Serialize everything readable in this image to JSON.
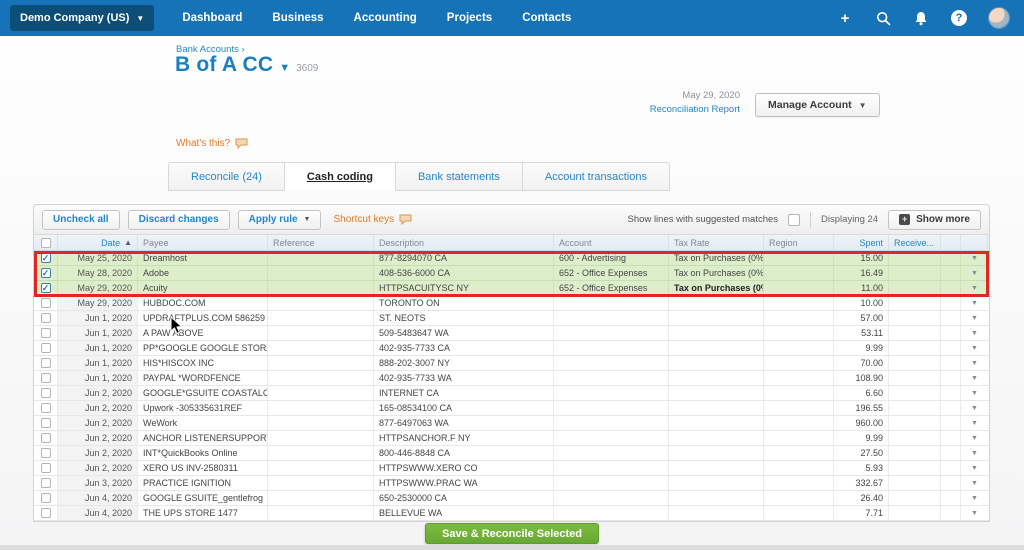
{
  "topbar": {
    "company": "Demo Company (US)",
    "nav": [
      "Dashboard",
      "Business",
      "Accounting",
      "Projects",
      "Contacts"
    ],
    "help_glyph": "?",
    "plus_glyph": "+"
  },
  "header": {
    "breadcrumb": "Bank Accounts ›",
    "title": "B of A CC",
    "account_number": "3609",
    "date": "May 29, 2020",
    "report_link": "Reconciliation Report",
    "manage_label": "Manage Account",
    "whats_this": "What's this?"
  },
  "tabs": [
    {
      "label": "Reconcile (24)",
      "active": false
    },
    {
      "label": "Cash coding",
      "active": true
    },
    {
      "label": "Bank statements",
      "active": false
    },
    {
      "label": "Account transactions",
      "active": false
    }
  ],
  "toolbar": {
    "uncheck_all": "Uncheck all",
    "discard_changes": "Discard changes",
    "apply_rule": "Apply rule",
    "shortcut_keys": "Shortcut keys",
    "suggested_matches_label": "Show lines with suggested matches",
    "displaying": "Displaying 24",
    "show_more": "Show more"
  },
  "table": {
    "columns": [
      {
        "label": "Date",
        "accent": true,
        "sorted_asc": true
      },
      {
        "label": "Payee",
        "accent": false
      },
      {
        "label": "Reference",
        "accent": false
      },
      {
        "label": "Description",
        "accent": false
      },
      {
        "label": "Account",
        "accent": false
      },
      {
        "label": "Tax Rate",
        "accent": false
      },
      {
        "label": "Region",
        "accent": false
      },
      {
        "label": "Spent",
        "accent": true
      },
      {
        "label": "Receive...",
        "accent": true
      }
    ],
    "rows": [
      {
        "checked": true,
        "highlight": true,
        "date": "May 25, 2020",
        "payee": "Dreamhost",
        "reference": "",
        "description": "877-8294070 CA",
        "account": "600 - Advertising",
        "tax_rate": "Tax on Purchases (0%)",
        "tax_bold": false,
        "region": "",
        "spent": "15.00",
        "receive": ""
      },
      {
        "checked": true,
        "highlight": true,
        "date": "May 28, 2020",
        "payee": "Adobe",
        "reference": "",
        "description": "408-536-6000 CA",
        "account": "652 - Office Expenses",
        "tax_rate": "Tax on Purchases (0%)",
        "tax_bold": false,
        "region": "",
        "spent": "16.49",
        "receive": ""
      },
      {
        "checked": true,
        "highlight": true,
        "date": "May 29, 2020",
        "payee": "Acuity",
        "reference": "",
        "description": "HTTPSACUITYSC NY",
        "account": "652 - Office Expenses",
        "tax_rate": "Tax on Purchases (0%)",
        "tax_bold": true,
        "region": "",
        "spent": "11.00",
        "receive": ""
      },
      {
        "checked": false,
        "highlight": false,
        "date": "May 29, 2020",
        "payee": "HUBDOC.COM",
        "reference": "",
        "description": "TORONTO ON",
        "account": "",
        "tax_rate": "",
        "tax_bold": false,
        "region": "",
        "spent": "10.00",
        "receive": ""
      },
      {
        "checked": false,
        "highlight": false,
        "date": "Jun 1, 2020",
        "payee": "UPDRAFTPLUS.COM 586259",
        "reference": "",
        "description": "ST. NEOTS",
        "account": "",
        "tax_rate": "",
        "tax_bold": false,
        "region": "",
        "spent": "57.00",
        "receive": ""
      },
      {
        "checked": false,
        "highlight": false,
        "date": "Jun 1, 2020",
        "payee": "A PAW ABOVE",
        "reference": "",
        "description": "509-5483647 WA",
        "account": "",
        "tax_rate": "",
        "tax_bold": false,
        "region": "",
        "spent": "53.11",
        "receive": ""
      },
      {
        "checked": false,
        "highlight": false,
        "date": "Jun 1, 2020",
        "payee": "PP*GOOGLE GOOGLE STORAGE",
        "reference": "",
        "description": "402-935-7733 CA",
        "account": "",
        "tax_rate": "",
        "tax_bold": false,
        "region": "",
        "spent": "9.99",
        "receive": ""
      },
      {
        "checked": false,
        "highlight": false,
        "date": "Jun 1, 2020",
        "payee": "HIS*HISCOX INC",
        "reference": "",
        "description": "888-202-3007 NY",
        "account": "",
        "tax_rate": "",
        "tax_bold": false,
        "region": "",
        "spent": "70.00",
        "receive": ""
      },
      {
        "checked": false,
        "highlight": false,
        "date": "Jun 1, 2020",
        "payee": "PAYPAL *WORDFENCE",
        "reference": "",
        "description": "402-935-7733 WA",
        "account": "",
        "tax_rate": "",
        "tax_bold": false,
        "region": "",
        "spent": "108.90",
        "receive": ""
      },
      {
        "checked": false,
        "highlight": false,
        "date": "Jun 2, 2020",
        "payee": "GOOGLE*GSUITE COASTALC",
        "reference": "",
        "description": "INTERNET CA",
        "account": "",
        "tax_rate": "",
        "tax_bold": false,
        "region": "",
        "spent": "6.60",
        "receive": ""
      },
      {
        "checked": false,
        "highlight": false,
        "date": "Jun 2, 2020",
        "payee": "Upwork -305335631REF",
        "reference": "",
        "description": "165-08534100 CA",
        "account": "",
        "tax_rate": "",
        "tax_bold": false,
        "region": "",
        "spent": "196.55",
        "receive": ""
      },
      {
        "checked": false,
        "highlight": false,
        "date": "Jun 2, 2020",
        "payee": "WeWork",
        "reference": "",
        "description": "877-6497063 WA",
        "account": "",
        "tax_rate": "",
        "tax_bold": false,
        "region": "",
        "spent": "960.00",
        "receive": ""
      },
      {
        "checked": false,
        "highlight": false,
        "date": "Jun 2, 2020",
        "payee": "ANCHOR LISTENERSUPPORT",
        "reference": "",
        "description": "HTTPSANCHOR.F NY",
        "account": "",
        "tax_rate": "",
        "tax_bold": false,
        "region": "",
        "spent": "9.99",
        "receive": ""
      },
      {
        "checked": false,
        "highlight": false,
        "date": "Jun 2, 2020",
        "payee": "INT*QuickBooks Online",
        "reference": "",
        "description": "800-446-8848 CA",
        "account": "",
        "tax_rate": "",
        "tax_bold": false,
        "region": "",
        "spent": "27.50",
        "receive": ""
      },
      {
        "checked": false,
        "highlight": false,
        "date": "Jun 2, 2020",
        "payee": "XERO US INV-2580311",
        "reference": "",
        "description": "HTTPSWWW.XERO CO",
        "account": "",
        "tax_rate": "",
        "tax_bold": false,
        "region": "",
        "spent": "5.93",
        "receive": ""
      },
      {
        "checked": false,
        "highlight": false,
        "date": "Jun 3, 2020",
        "payee": "PRACTICE IGNITION",
        "reference": "",
        "description": "HTTPSWWW.PRAC WA",
        "account": "",
        "tax_rate": "",
        "tax_bold": false,
        "region": "",
        "spent": "332.67",
        "receive": ""
      },
      {
        "checked": false,
        "highlight": false,
        "date": "Jun 4, 2020",
        "payee": "GOOGLE GSUITE_gentlefrog",
        "reference": "",
        "description": "650-2530000 CA",
        "account": "",
        "tax_rate": "",
        "tax_bold": false,
        "region": "",
        "spent": "26.40",
        "receive": ""
      },
      {
        "checked": false,
        "highlight": false,
        "date": "Jun 4, 2020",
        "payee": "THE UPS STORE 1477",
        "reference": "",
        "description": "BELLEVUE WA",
        "account": "",
        "tax_rate": "",
        "tax_bold": false,
        "region": "",
        "spent": "7.71",
        "receive": ""
      }
    ]
  },
  "footer": {
    "save_label": "Save & Reconcile Selected"
  },
  "colors": {
    "topbar_blue": "#1673b8",
    "company_bg": "#0d4e78",
    "link_blue": "#2387c9",
    "title_blue": "#1a7fc1",
    "orange": "#dd7b28",
    "green_button": "#68a832",
    "row_highlight_green": "#ddeeca",
    "red_border": "#e0281e"
  }
}
